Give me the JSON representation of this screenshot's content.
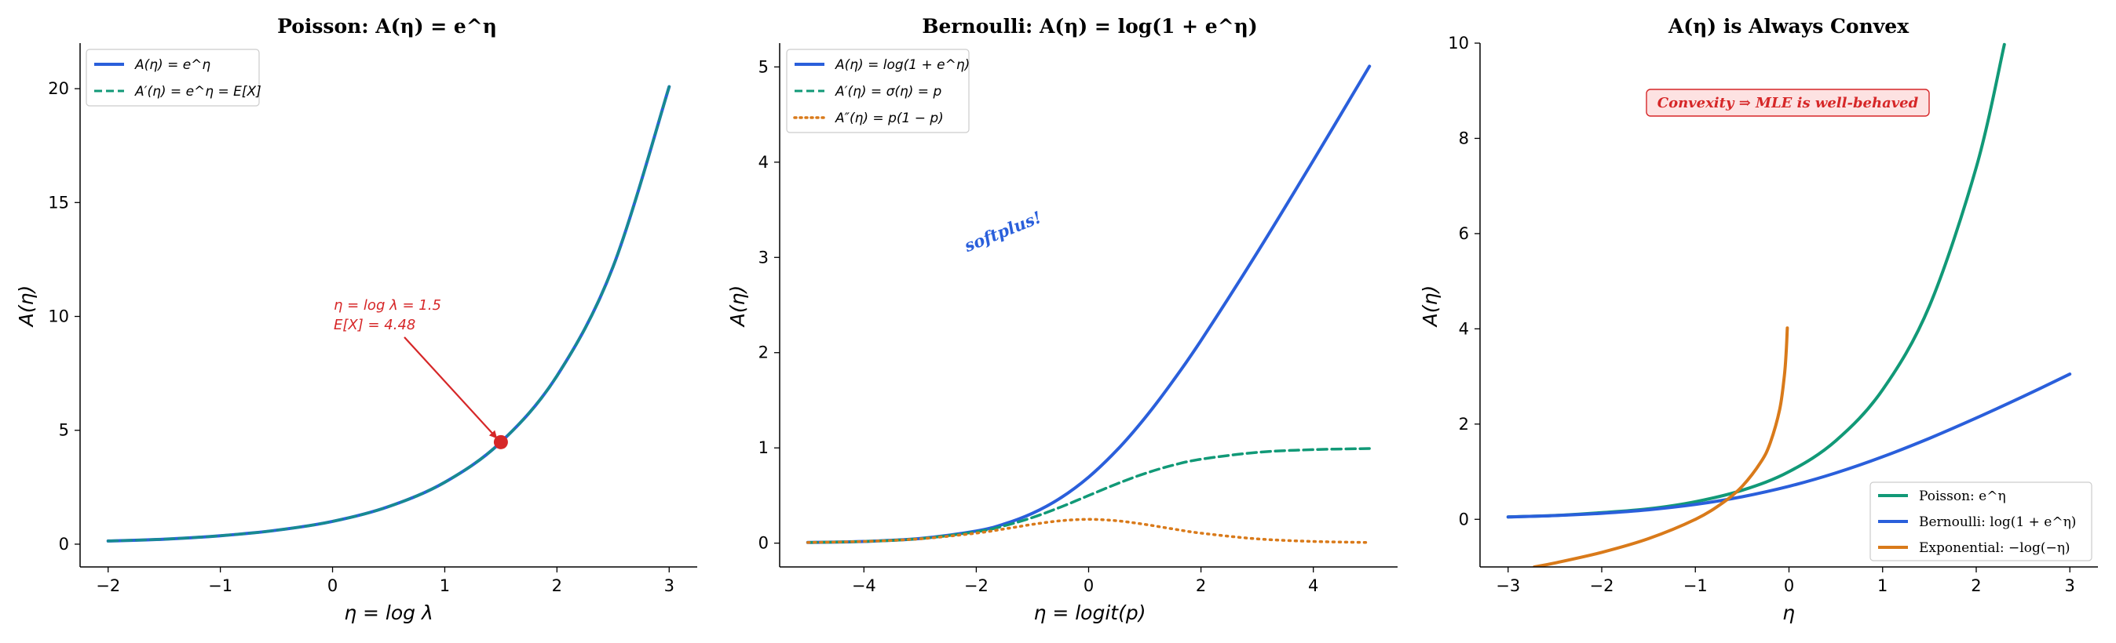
{
  "chart_data": [
    {
      "type": "line",
      "title": "Poisson: A(η) = e^η",
      "xlabel": "η = log λ",
      "ylabel": "A(η)",
      "xlim": [
        -2.25,
        3.25
      ],
      "ylim": [
        -1.0,
        22.0
      ],
      "xticks": [
        -2,
        -1,
        0,
        1,
        2,
        3
      ],
      "yticks": [
        0,
        5,
        10,
        15,
        20
      ],
      "xtick_labels": [
        "−2",
        "−1",
        "0",
        "1",
        "2",
        "3"
      ],
      "ytick_labels": [
        "0",
        "5",
        "10",
        "15",
        "20"
      ],
      "legend_position": "top-left",
      "series": [
        {
          "name": "A(η) = e^η",
          "color": "#2a5fdb",
          "style": "solid",
          "x": [
            -2.0,
            -1.5,
            -1.0,
            -0.5,
            0.0,
            0.5,
            1.0,
            1.5,
            2.0,
            2.5,
            3.0
          ],
          "y": [
            0.14,
            0.22,
            0.37,
            0.61,
            1.0,
            1.65,
            2.72,
            4.48,
            7.39,
            12.18,
            20.09
          ]
        },
        {
          "name": "A′(η) = e^η = E[X]",
          "color": "#119977",
          "style": "dashed",
          "x": [
            -2.0,
            -1.5,
            -1.0,
            -0.5,
            0.0,
            0.5,
            1.0,
            1.5,
            2.0,
            2.5,
            3.0
          ],
          "y": [
            0.14,
            0.22,
            0.37,
            0.61,
            1.0,
            1.65,
            2.72,
            4.48,
            7.39,
            12.18,
            20.09
          ]
        }
      ],
      "annotation": {
        "line1": "η = log λ = 1.5",
        "line2": "E[X] = 4.48",
        "x": 1.5,
        "y": 4.48
      }
    },
    {
      "type": "line",
      "title": "Bernoulli: A(η) = log(1 + e^η)",
      "xlabel": "η = logit(p)",
      "ylabel": "A(η)",
      "xlim": [
        -5.5,
        5.5
      ],
      "ylim": [
        -0.25,
        5.25
      ],
      "xticks": [
        -4,
        -2,
        0,
        2,
        4
      ],
      "yticks": [
        0,
        1,
        2,
        3,
        4,
        5
      ],
      "xtick_labels": [
        "−4",
        "−2",
        "0",
        "2",
        "4"
      ],
      "ytick_labels": [
        "0",
        "1",
        "2",
        "3",
        "4",
        "5"
      ],
      "legend_position": "top-left",
      "series": [
        {
          "name": "A(η) = log(1 + e^η)",
          "color": "#2a5fdb",
          "style": "solid",
          "x": [
            -5,
            -4,
            -3,
            -2,
            -1.5,
            -1,
            -0.5,
            0,
            0.5,
            1,
            1.5,
            2,
            3,
            4,
            5
          ],
          "y": [
            0.007,
            0.018,
            0.049,
            0.127,
            0.201,
            0.313,
            0.474,
            0.693,
            0.974,
            1.313,
            1.701,
            2.127,
            3.049,
            4.018,
            5.007
          ]
        },
        {
          "name": "A′(η) = σ(η) = p",
          "color": "#119977",
          "style": "dashed",
          "x": [
            -5,
            -4,
            -3,
            -2,
            -1.5,
            -1,
            -0.5,
            0,
            0.5,
            1,
            1.5,
            2,
            3,
            4,
            5
          ],
          "y": [
            0.007,
            0.018,
            0.047,
            0.119,
            0.182,
            0.269,
            0.378,
            0.5,
            0.622,
            0.731,
            0.818,
            0.881,
            0.953,
            0.982,
            0.993
          ]
        },
        {
          "name": "A″(η) = p(1 − p)",
          "color": "#d97a1a",
          "style": "dotted",
          "x": [
            -5,
            -4,
            -3,
            -2,
            -1.5,
            -1,
            -0.5,
            0,
            0.5,
            1,
            1.5,
            2,
            3,
            4,
            5
          ],
          "y": [
            0.007,
            0.018,
            0.045,
            0.105,
            0.149,
            0.197,
            0.235,
            0.25,
            0.235,
            0.197,
            0.149,
            0.105,
            0.045,
            0.018,
            0.007
          ]
        }
      ],
      "annotation": {
        "text": "softplus!",
        "x": -1.5,
        "y": 3.25
      }
    },
    {
      "type": "line",
      "title": "A(η) is Always Convex",
      "xlabel": "η",
      "ylabel": "A(η)",
      "xlim": [
        -3.3,
        3.3
      ],
      "ylim": [
        -1.0,
        10.0
      ],
      "xticks": [
        -3,
        -2,
        -1,
        0,
        1,
        2,
        3
      ],
      "yticks": [
        0,
        2,
        4,
        6,
        8,
        10
      ],
      "xtick_labels": [
        "−3",
        "−2",
        "−1",
        "0",
        "1",
        "2",
        "3"
      ],
      "ytick_labels": [
        "0",
        "2",
        "4",
        "6",
        "8",
        "10"
      ],
      "legend_position": "bottom-right",
      "series": [
        {
          "name": "Poisson: e^η",
          "color": "#119977",
          "style": "solid",
          "x": [
            -3.0,
            -2.5,
            -2.0,
            -1.5,
            -1.0,
            -0.5,
            0.0,
            0.5,
            1.0,
            1.5,
            2.0,
            2.3
          ],
          "y": [
            0.05,
            0.08,
            0.14,
            0.22,
            0.37,
            0.61,
            1.0,
            1.65,
            2.72,
            4.48,
            7.39,
            9.97
          ]
        },
        {
          "name": "Bernoulli: log(1 + e^η)",
          "color": "#2a5fdb",
          "style": "solid",
          "x": [
            -3.0,
            -2.5,
            -2.0,
            -1.5,
            -1.0,
            -0.5,
            0.0,
            0.5,
            1.0,
            1.5,
            2.0,
            2.5,
            3.0
          ],
          "y": [
            0.049,
            0.079,
            0.127,
            0.201,
            0.313,
            0.474,
            0.693,
            0.974,
            1.313,
            1.701,
            2.127,
            2.579,
            3.049
          ]
        },
        {
          "name": "Exponential: −log(−η)",
          "color": "#d97a1a",
          "style": "solid",
          "x": [
            -2.72,
            -2.5,
            -2.0,
            -1.5,
            -1.0,
            -0.7,
            -0.5,
            -0.3,
            -0.2,
            -0.1,
            -0.05,
            -0.03,
            -0.018
          ],
          "y": [
            -1.0,
            -0.916,
            -0.693,
            -0.405,
            0.0,
            0.357,
            0.693,
            1.204,
            1.609,
            2.303,
            2.996,
            3.507,
            4.017
          ]
        }
      ],
      "annotation": {
        "text": "Convexity ⇒ MLE is well-behaved"
      }
    }
  ]
}
